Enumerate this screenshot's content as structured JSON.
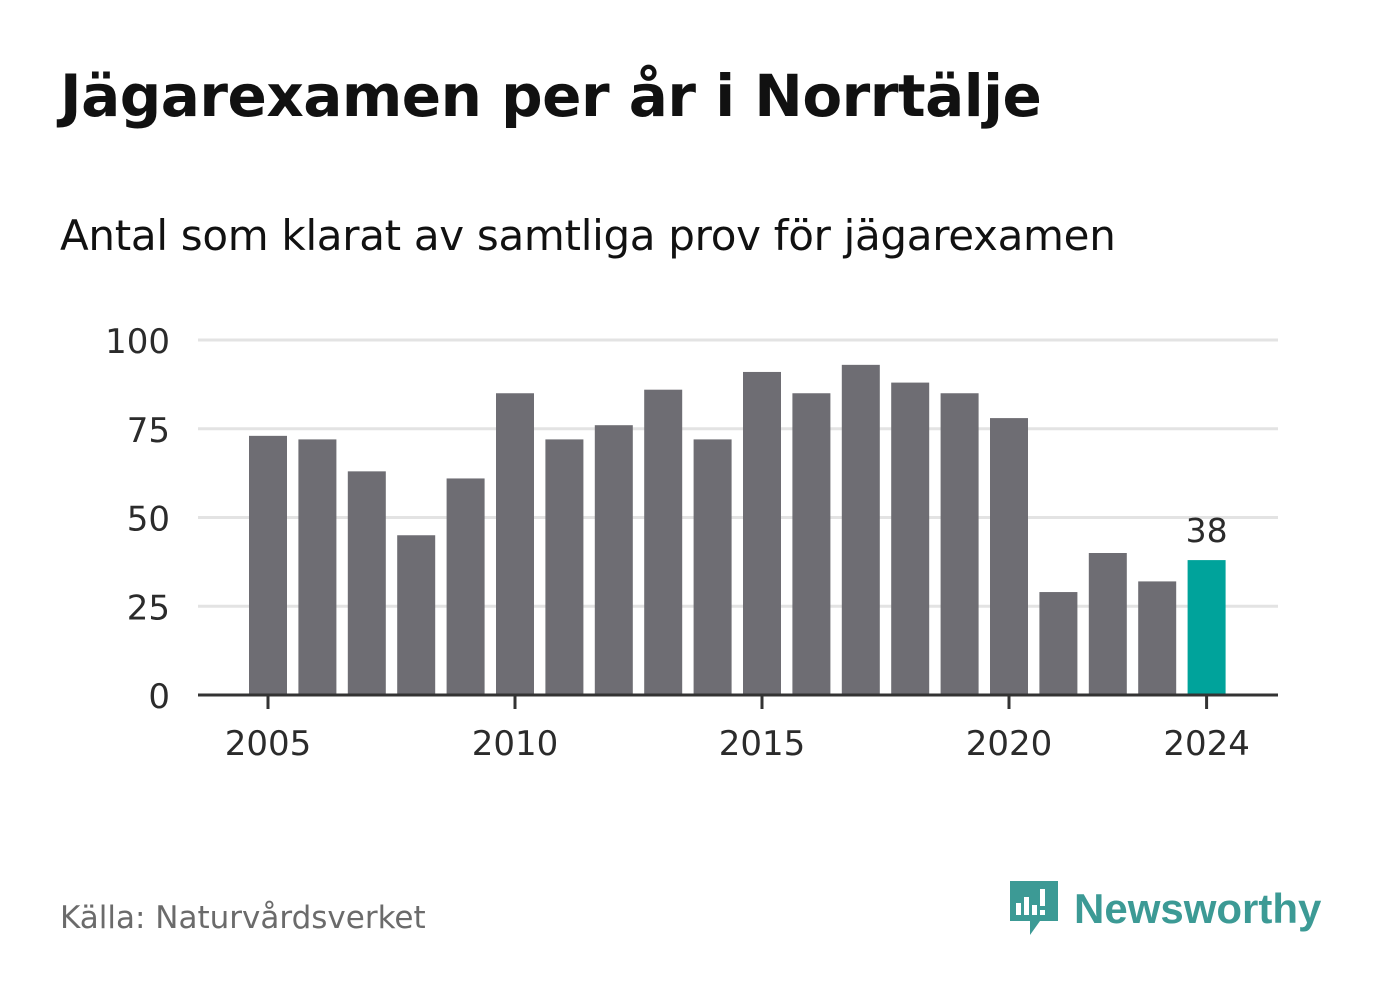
{
  "title": "Jägarexamen per år i Norrtälje",
  "subtitle": "Antal som klarat av samtliga prov för jägarexamen",
  "source": "Källa: Naturvårdsverket",
  "brand": {
    "name": "Newsworthy",
    "icon": "newsworthy-logo-icon",
    "color": "#3c9a95"
  },
  "colors": {
    "bar": "#6e6d73",
    "highlight": "#00a39b",
    "grid": "#e3e3e3",
    "axis": "#333333",
    "text": "#2b2b2b"
  },
  "chart_data": {
    "type": "bar",
    "title": "Jägarexamen per år i Norrtälje",
    "subtitle": "Antal som klarat av samtliga prov för jägarexamen",
    "xlabel": "",
    "ylabel": "",
    "categories": [
      2005,
      2006,
      2007,
      2008,
      2009,
      2010,
      2011,
      2012,
      2013,
      2014,
      2015,
      2016,
      2017,
      2018,
      2019,
      2020,
      2021,
      2022,
      2023,
      2024
    ],
    "values": [
      73,
      72,
      63,
      45,
      61,
      85,
      72,
      76,
      86,
      72,
      91,
      85,
      93,
      88,
      85,
      78,
      29,
      40,
      32,
      38
    ],
    "ylim": [
      0,
      100
    ],
    "yticks": [
      0,
      25,
      50,
      75,
      100
    ],
    "xticks": [
      2005,
      2010,
      2015,
      2020,
      2024
    ],
    "highlight": {
      "category": 2024,
      "label": "38"
    },
    "grid": true,
    "legend": "none"
  }
}
